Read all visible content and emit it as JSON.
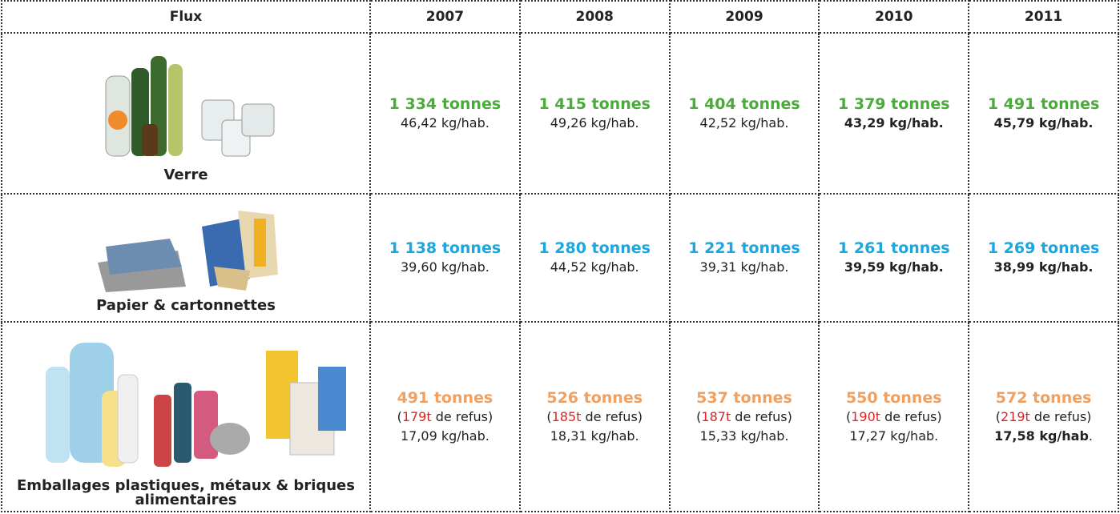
{
  "header": [
    "Flux",
    "2007",
    "2008",
    "2009",
    "2010",
    "2011"
  ],
  "rows": [
    {
      "label": "Verre",
      "color": "#4aab3a",
      "cells": [
        {
          "tonnes": "1 334 tonnes",
          "ratio": "46,42 kg/hab.",
          "bold": false
        },
        {
          "tonnes": "1 415 tonnes",
          "ratio": "49,26 kg/hab.",
          "bold": false
        },
        {
          "tonnes": "1 404 tonnes",
          "ratio": "42,52 kg/hab.",
          "bold": false
        },
        {
          "tonnes": "1 379 tonnes",
          "ratio": "43,29 kg/hab.",
          "bold": true
        },
        {
          "tonnes": "1 491 tonnes",
          "ratio": "45,79 kg/hab.",
          "bold": true
        }
      ]
    },
    {
      "label": "Papier & cartonnettes",
      "color": "#1aa6e0",
      "cells": [
        {
          "tonnes": "1 138 tonnes",
          "ratio": "39,60 kg/hab.",
          "bold": false
        },
        {
          "tonnes": "1 280 tonnes",
          "ratio": "44,52 kg/hab.",
          "bold": false
        },
        {
          "tonnes": "1 221 tonnes",
          "ratio": "39,31 kg/hab.",
          "bold": false
        },
        {
          "tonnes": "1 261 tonnes",
          "ratio": "39,59 kg/hab.",
          "bold": true
        },
        {
          "tonnes": "1 269 tonnes",
          "ratio": "38,99 kg/hab.",
          "bold": true
        }
      ]
    },
    {
      "label": "Emballages plastiques, métaux & briques alimentaires",
      "color": "#f0a060",
      "cells": [
        {
          "tonnes": "491 tonnes",
          "refus": [
            "(",
            "179t",
            " de refus)"
          ],
          "ratio": "17,09 kg/hab.",
          "bold": false
        },
        {
          "tonnes": "526 tonnes",
          "refus": [
            "(",
            "185t",
            " de refus)"
          ],
          "ratio": "18,31 kg/hab.",
          "bold": false
        },
        {
          "tonnes": "537 tonnes",
          "refus": [
            "(",
            "187t",
            " de refus)"
          ],
          "ratio": "15,33 kg/hab.",
          "bold": false
        },
        {
          "tonnes": "550 tonnes",
          "refus": [
            "(",
            "190t",
            " de refus)"
          ],
          "ratio": "17,27 kg/hab.",
          "bold": false
        },
        {
          "tonnes": "572 tonnes",
          "refus": [
            "(",
            "219t",
            " de refus)"
          ],
          "ratio": "17,58 kg/hab",
          "ratio_suffix": ".",
          "bold": true
        }
      ]
    }
  ]
}
